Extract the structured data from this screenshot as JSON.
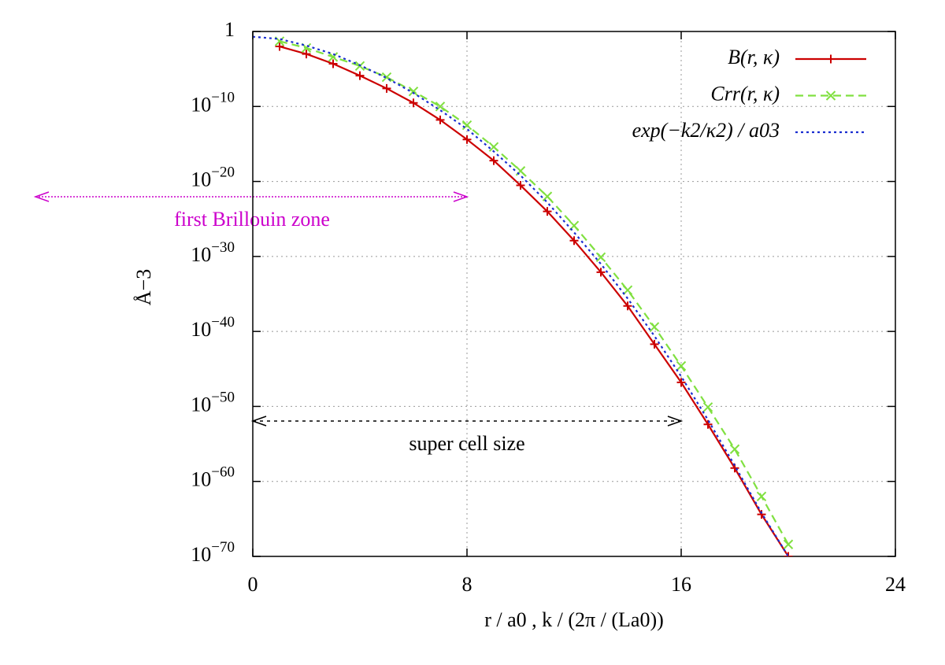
{
  "chart_data": {
    "type": "line",
    "y_label": "Å−3",
    "x_label": "r / a0 ,   k / (2π / (La0))",
    "log_y": true,
    "grid": true,
    "legend": "top-right",
    "xlim": [
      0,
      24
    ],
    "xticks": [
      0,
      8,
      16,
      24
    ],
    "ylim": [
      1e-70,
      1
    ],
    "yticks": [
      1,
      {
        "value": 1e-10,
        "label": "10−10"
      },
      {
        "value": 1e-20,
        "label": "10−20"
      },
      {
        "value": 1e-30,
        "label": "10−30"
      },
      {
        "value": 1e-40,
        "label": "10−40"
      },
      {
        "value": 1e-50,
        "label": "10−50"
      },
      {
        "value": 1e-60,
        "label": "10−60"
      },
      {
        "value": 1e-70,
        "label": "10−70"
      }
    ],
    "series": [
      {
        "name": "B(r, κ)",
        "color": "#cc0000",
        "style": "solid",
        "marker": "plus",
        "x": [
          1,
          2,
          3,
          4,
          5,
          6,
          7,
          8,
          9,
          10,
          11,
          12,
          13,
          14,
          15,
          16,
          17,
          18,
          19,
          20
        ],
        "values": [
          0.01,
          0.001,
          5e-05,
          1.3e-06,
          2.5e-08,
          3e-10,
          1.6e-12,
          4e-15,
          6e-18,
          3e-21,
          1e-24,
          1.3e-28,
          8e-33,
          2.5e-37,
          2e-42,
          1.6e-47,
          4e-53,
          6e-59,
          4e-65,
          1e-70
        ]
      },
      {
        "name": "Crr(r, κ)",
        "color": "#80e040",
        "style": "dashed",
        "marker": "cross",
        "x": [
          1,
          2,
          3,
          4,
          5,
          6,
          7,
          8,
          9,
          10,
          11,
          12,
          13,
          14,
          15,
          16,
          17,
          18,
          19,
          20
        ],
        "values": [
          0.05,
          0.0063,
          0.0004,
          2.5e-05,
          8e-07,
          1e-08,
          1e-10,
          3.2e-13,
          4e-16,
          2.5e-19,
          1e-22,
          1.3e-26,
          8e-31,
          3.2e-35,
          4e-40,
          2.5e-45,
          8e-51,
          2e-56,
          1e-62,
          4e-69
        ]
      },
      {
        "name": "exp(−k2/κ2) / a03",
        "color": "#1a2ed0",
        "style": "dotted",
        "marker": "none",
        "x": [
          0,
          1,
          2,
          3,
          4,
          5,
          6,
          7,
          8,
          9,
          10,
          11,
          12,
          13,
          14,
          15,
          16,
          17,
          18,
          19,
          20
        ],
        "values": [
          0.2,
          0.1,
          0.013,
          0.001,
          3.2e-05,
          6.3e-07,
          6.3e-09,
          3.2e-11,
          1e-13,
          1e-16,
          6.3e-20,
          1.6e-23,
          1.6e-27,
          1e-31,
          2.5e-36,
          2.5e-41,
          1e-46,
          1.6e-52,
          1.3e-58,
          6.3e-65,
          1e-70
        ]
      }
    ],
    "annotations": [
      {
        "text": "first Brillouin zone",
        "color": "#cc00cc"
      },
      {
        "text": "super cell size",
        "color": "#000000"
      }
    ]
  }
}
